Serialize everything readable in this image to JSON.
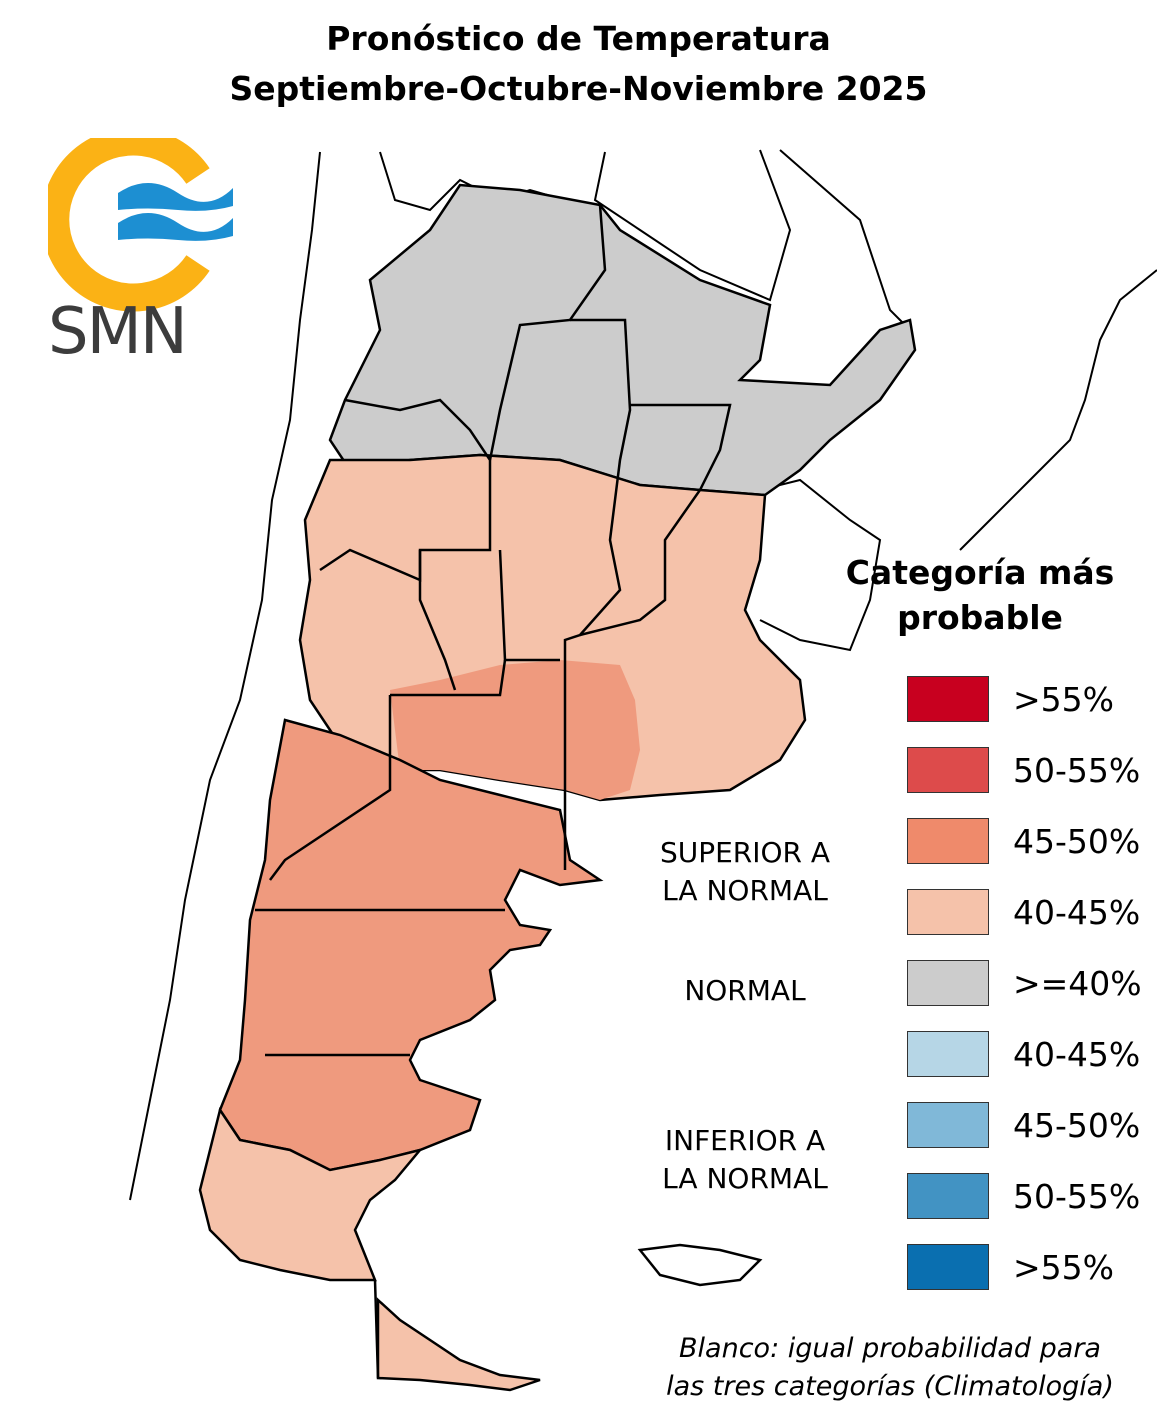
{
  "title": {
    "line1": "Pronóstico de Temperatura",
    "line2": "Septiembre-Octubre-Noviembre 2025"
  },
  "logo": {
    "text": "SMN",
    "colors": {
      "sun": "#fbb215",
      "waves": "#1d8fd2",
      "text": "#3c3c3c"
    }
  },
  "legend": {
    "title_line1": "Categoría más",
    "title_line2": "probable",
    "items": [
      {
        "label": ">55%",
        "color": "#c8001f"
      },
      {
        "label": "50-55%",
        "color": "#dd4b4b"
      },
      {
        "label": "45-50%",
        "color": "#ef8a6b"
      },
      {
        "label": "40-45%",
        "color": "#f5c2aa"
      },
      {
        "label": ">=40%",
        "color": "#cccccc"
      },
      {
        "label": "40-45%",
        "color": "#b6d6e6"
      },
      {
        "label": "45-50%",
        "color": "#80b8d8"
      },
      {
        "label": "50-55%",
        "color": "#4293c3"
      },
      {
        "label": ">55%",
        "color": "#0a6fb0"
      }
    ],
    "groups": {
      "superior": "SUPERIOR A\nLA NORMAL",
      "normal": "NORMAL",
      "inferior": "INFERIOR A\nLA NORMAL"
    }
  },
  "note": {
    "line1": "Blanco: igual probabilidad para",
    "line2": "las tres categorías (Climatología)"
  },
  "map_colors": {
    "normal": "#cccccc",
    "above_40_45": "#f5c2aa",
    "above_45_50": "#ef9a7e",
    "blank": "#e8e8e8",
    "outline": "#000000"
  }
}
